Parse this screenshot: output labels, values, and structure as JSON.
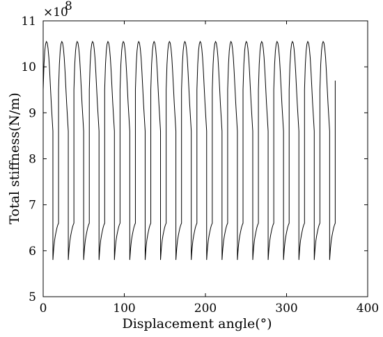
{
  "chart_data": {
    "type": "line",
    "title": "",
    "xlabel": "Displacement angle(°)",
    "ylabel": "Total stiffness(N/m)",
    "y_multiplier_label": "×10",
    "y_multiplier_exponent": "8",
    "xlim": [
      0,
      400
    ],
    "ylim": [
      5,
      11
    ],
    "x_ticks": [
      "0",
      "100",
      "200",
      "300",
      "400"
    ],
    "y_ticks": [
      "5",
      "6",
      "7",
      "8",
      "9",
      "10",
      "11"
    ],
    "grid": false,
    "series": [
      {
        "periodic_profile": {
          "period_deg": 18.95,
          "cycles": 19,
          "x_end": 360,
          "start_value": 9.5,
          "upper_phase": {
            "x_offsets": [
              0,
              1,
              2,
              3,
              4,
              5,
              6,
              7,
              8,
              9,
              10,
              11,
              12
            ],
            "values": [
              9.5,
              10.05,
              10.35,
              10.5,
              10.55,
              10.52,
              10.4,
              10.2,
              9.9,
              9.55,
              9.2,
              8.9,
              8.6
            ]
          },
          "drop_value": 5.8,
          "lower_phase": {
            "x_offsets": [
              12,
              13,
              14,
              15,
              16,
              17,
              18,
              18.95
            ],
            "values": [
              5.8,
              6.05,
              6.22,
              6.33,
              6.42,
              6.5,
              6.56,
              6.6
            ]
          },
          "final_value": 9.7
        }
      }
    ]
  }
}
